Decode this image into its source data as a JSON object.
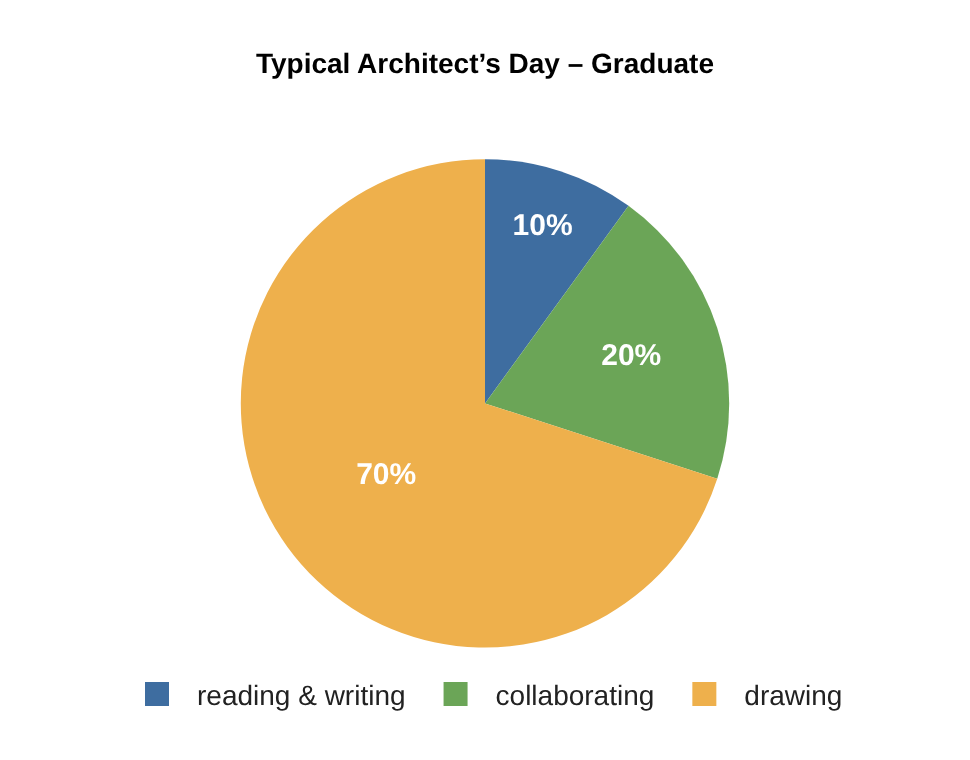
{
  "chart_data": {
    "type": "pie",
    "title": "Typical Architect’s Day – Graduate",
    "categories": [
      "reading & writing",
      "collaborating",
      "drawing"
    ],
    "values": [
      10,
      20,
      70
    ],
    "value_labels": [
      "10%",
      "20%",
      "70%"
    ],
    "colors": [
      "#3e6da0",
      "#6ba557",
      "#eeb04c"
    ],
    "legend": "bottom"
  }
}
